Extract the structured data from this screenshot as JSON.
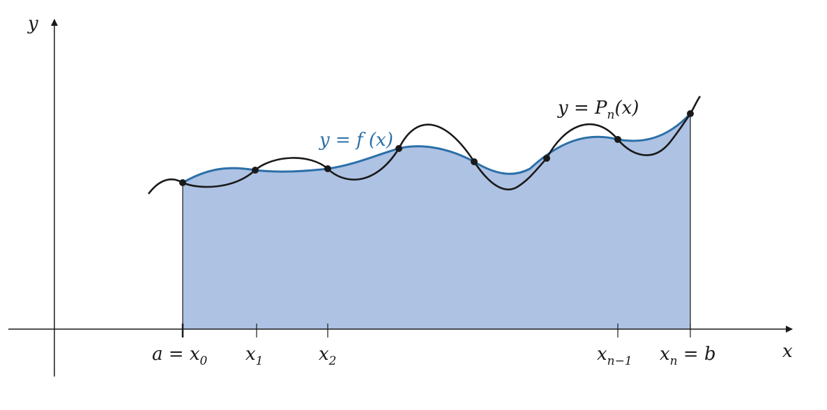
{
  "axes": {
    "x_label": "x",
    "y_label": "y"
  },
  "curves": {
    "f_label": {
      "pre": "y = f (x)"
    },
    "p_label": {
      "pre": "y = P",
      "sub": "n",
      "post": "(x)"
    }
  },
  "ticks": [
    {
      "pre": "a = x",
      "sub": "0",
      "post": ""
    },
    {
      "pre": "x",
      "sub": "1",
      "post": ""
    },
    {
      "pre": "x",
      "sub": "2",
      "post": ""
    },
    {
      "pre": "x",
      "sub": "n−1",
      "post": ""
    },
    {
      "pre": "x",
      "sub": "n",
      "post": " = b"
    }
  ],
  "colors": {
    "f_curve": "#2b6fa8",
    "fill": "#aec2e4",
    "p_curve": "#1a1a1a",
    "axis": "#1a1a1a"
  }
}
